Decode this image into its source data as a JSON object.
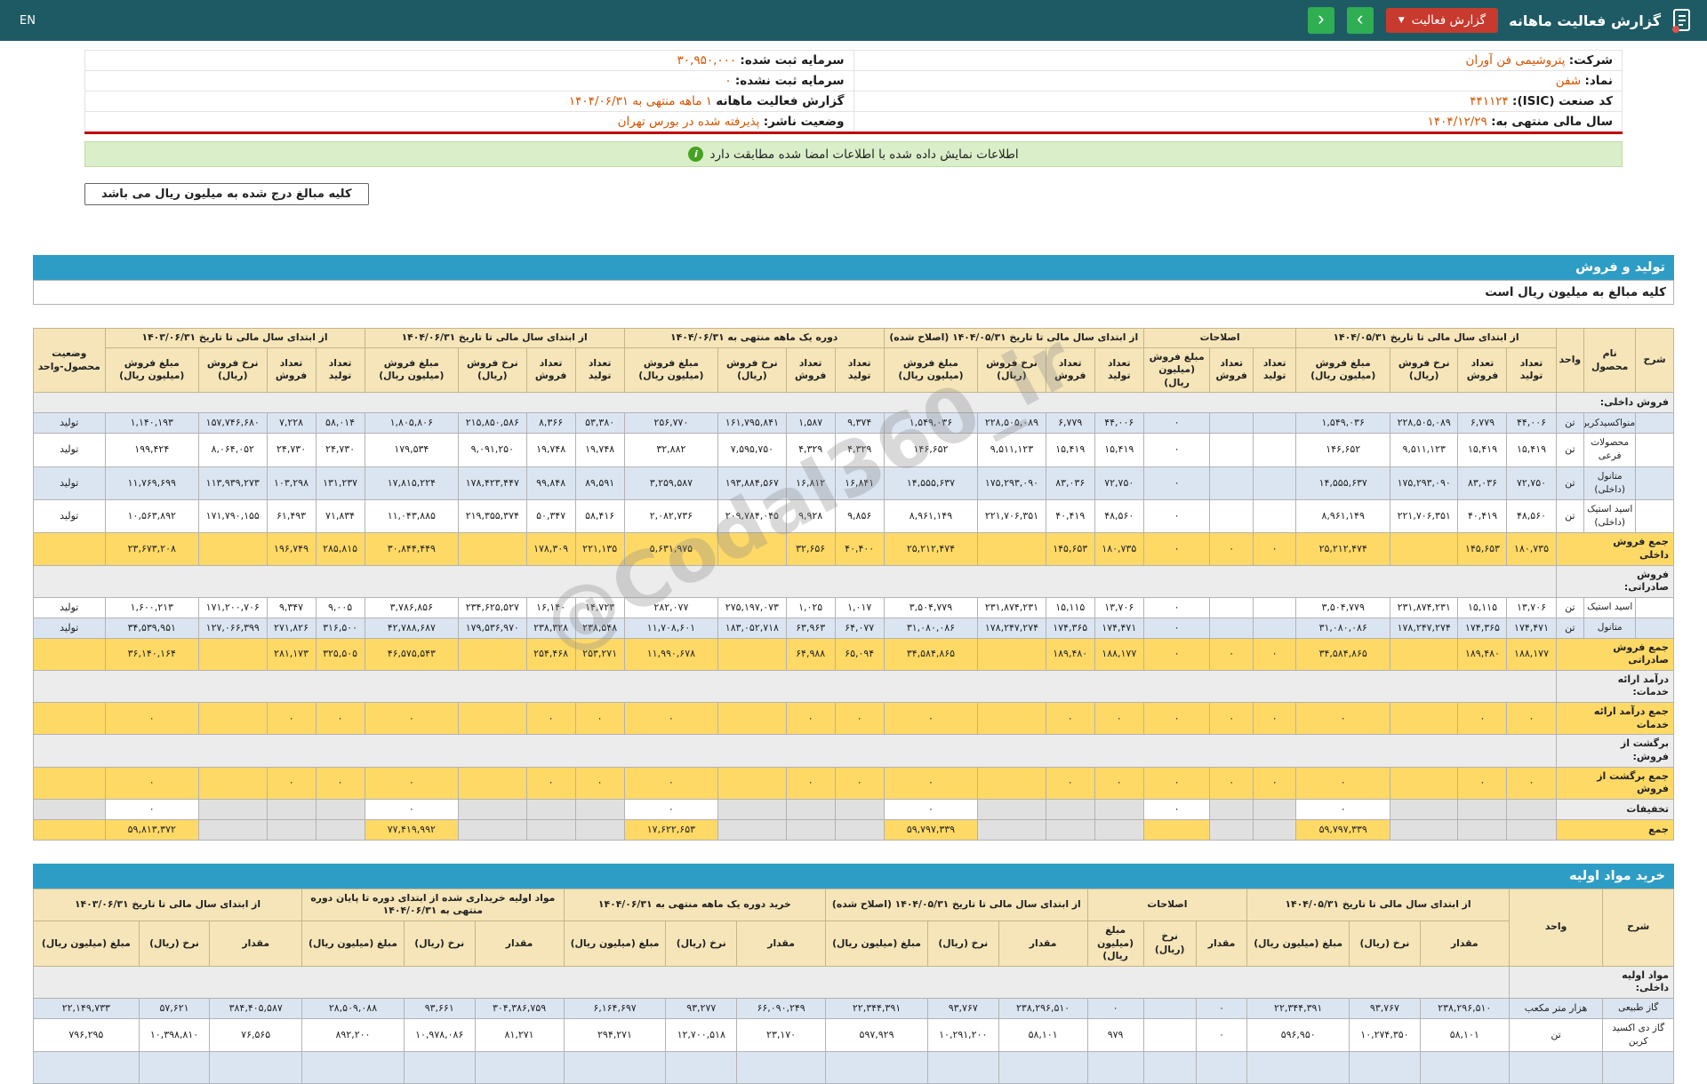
{
  "topbar": {
    "title": "گزارش فعالیت ماهانه",
    "report_button_label": "گزارش فعالیت",
    "lang_link": "EN"
  },
  "company": {
    "rows": [
      {
        "cells": [
          {
            "label": "شرکت:",
            "value": "پتروشیمی فن آوران"
          },
          {
            "label": "سرمایه ثبت شده:",
            "value": "۳۰,۹۵۰,۰۰۰"
          }
        ]
      },
      {
        "cells": [
          {
            "label": "نماد:",
            "value": "شفن"
          },
          {
            "label": "سرمایه ثبت نشده:",
            "value": "۰"
          }
        ]
      },
      {
        "cells": [
          {
            "label": "کد صنعت (ISIC):",
            "value": "۴۴۱۱۲۴"
          },
          {
            "label": "گزارش فعالیت ماهانه",
            "value": "۱ ماهه منتهی به ۱۴۰۴/۰۶/۳۱"
          }
        ]
      },
      {
        "cells": [
          {
            "label": "سال مالی منتهی به:",
            "value": "۱۴۰۴/۱۲/۲۹"
          },
          {
            "label": "وضعیت ناشر:",
            "value": "پذیرفته شده در بورس تهران"
          }
        ]
      }
    ]
  },
  "banner": {
    "text": "اطلاعات نمایش داده شده با اطلاعات امضا شده مطابقت دارد"
  },
  "notes": {
    "amounts_box": "کلیه مبالغ درج شده به میلیون ریال می باشد",
    "table_note": "کلیه مبالغ به میلیون ریال است"
  },
  "sections": {
    "sales": "تولید و فروش",
    "purchases": "خرید مواد اولیه"
  },
  "watermark": "@Codal360_ir",
  "colors": {
    "topbar_teal": "#1d5a64",
    "section_blue": "#2e9dc6",
    "button_red": "#c8392e",
    "button_green": "#2fae52",
    "highlight_yellow": "#ffd966",
    "row_blue": "#dbe5f2",
    "value_orange": "#d35400",
    "banner_green": "#daeec9",
    "red_line": "#c00000",
    "header_tan": "#f5e5b8"
  },
  "sales_table": {
    "corner": [
      "شرح",
      "نام محصول",
      "واحد"
    ],
    "status_header": "وضعیت محصول-واحد",
    "col_widths": [
      2.3,
      3.1,
      1.7,
      2.95,
      2.95,
      4.1,
      5.65,
      2.6,
      2.6,
      4.0,
      2.95,
      2.95,
      4.1,
      5.65,
      2.95,
      2.95,
      4.1,
      5.65,
      2.95,
      2.95,
      4.1,
      5.65,
      2.95,
      2.95,
      4.1,
      5.65,
      4.3
    ],
    "groups": [
      {
        "title": "از ابتدای سال مالی تا تاریخ ۱۴۰۴/۰۵/۳۱",
        "cols": [
          "تعداد تولید",
          "تعداد فروش",
          "نرخ فروش (ریال)",
          "مبلغ فروش (میلیون ریال)"
        ]
      },
      {
        "title": "اصلاحات",
        "cols": [
          "تعداد تولید",
          "تعداد فروش",
          "مبلغ فروش (میلیون ریال)"
        ]
      },
      {
        "title": "از ابتدای سال مالی تا تاریخ ۱۴۰۴/۰۵/۳۱ (اصلاح شده)",
        "cols": [
          "تعداد تولید",
          "تعداد فروش",
          "نرخ فروش (ریال)",
          "مبلغ فروش (میلیون ریال)"
        ]
      },
      {
        "title": "دوره یک ماهه منتهی به ۱۴۰۴/۰۶/۳۱",
        "cols": [
          "تعداد تولید",
          "تعداد فروش",
          "نرخ فروش (ریال)",
          "مبلغ فروش (میلیون ریال)"
        ]
      },
      {
        "title": "از ابتدای سال مالی تا تاریخ ۱۴۰۴/۰۶/۳۱",
        "cols": [
          "تعداد تولید",
          "تعداد فروش",
          "نرخ فروش (ریال)",
          "مبلغ فروش (میلیون ریال)"
        ]
      },
      {
        "title": "از ابتدای سال مالی تا تاریخ ۱۴۰۳/۰۶/۳۱",
        "cols": [
          "تعداد تولید",
          "تعداد فروش",
          "نرخ فروش (ریال)",
          "مبلغ فروش (میلیون ریال)"
        ]
      }
    ],
    "rows": [
      {
        "type": "section",
        "label": "فروش داخلی:"
      },
      {
        "type": "product",
        "name": "منواکسیدکربن",
        "unit": "تن",
        "status": "تولید",
        "shade": "rb",
        "cells": [
          "۴۴,۰۰۶",
          "۶,۷۷۹",
          "۲۲۸,۵۰۵,۰۸۹",
          "۱,۵۴۹,۰۳۶",
          "",
          "",
          "۰",
          "۴۴,۰۰۶",
          "۶,۷۷۹",
          "۲۲۸,۵۰۵,۰۸۹",
          "۱,۵۴۹,۰۳۶",
          "۹,۳۷۴",
          "۱,۵۸۷",
          "۱۶۱,۷۹۵,۸۴۱",
          "۲۵۶,۷۷۰",
          "۵۳,۳۸۰",
          "۸,۳۶۶",
          "۲۱۵,۸۵۰,۵۸۶",
          "۱,۸۰۵,۸۰۶",
          "۵۸,۰۱۴",
          "۷,۲۲۸",
          "۱۵۷,۷۴۶,۶۸۰",
          "۱,۱۴۰,۱۹۳"
        ]
      },
      {
        "type": "product",
        "name": "محصولات فرعی",
        "unit": "تن",
        "status": "تولید",
        "shade": "rw",
        "cells": [
          "۱۵,۴۱۹",
          "۱۵,۴۱۹",
          "۹,۵۱۱,۱۲۳",
          "۱۴۶,۶۵۲",
          "",
          "",
          "۰",
          "۱۵,۴۱۹",
          "۱۵,۴۱۹",
          "۹,۵۱۱,۱۲۳",
          "۱۴۶,۶۵۲",
          "۴,۳۲۹",
          "۴,۳۲۹",
          "۷,۵۹۵,۷۵۰",
          "۳۲,۸۸۲",
          "۱۹,۷۴۸",
          "۱۹,۷۴۸",
          "۹,۰۹۱,۲۵۰",
          "۱۷۹,۵۳۴",
          "۲۴,۷۳۰",
          "۲۴,۷۳۰",
          "۸,۰۶۴,۰۵۲",
          "۱۹۹,۴۲۴"
        ]
      },
      {
        "type": "product",
        "name": "متانول (داخلی)",
        "unit": "تن",
        "status": "تولید",
        "shade": "rb",
        "cells": [
          "۷۲,۷۵۰",
          "۸۳,۰۳۶",
          "۱۷۵,۲۹۳,۰۹۰",
          "۱۴,۵۵۵,۶۳۷",
          "",
          "",
          "۰",
          "۷۲,۷۵۰",
          "۸۳,۰۳۶",
          "۱۷۵,۲۹۳,۰۹۰",
          "۱۴,۵۵۵,۶۳۷",
          "۱۶,۸۴۱",
          "۱۶,۸۱۲",
          "۱۹۳,۸۸۴,۵۶۷",
          "۳,۲۵۹,۵۸۷",
          "۸۹,۵۹۱",
          "۹۹,۸۴۸",
          "۱۷۸,۴۲۳,۴۴۷",
          "۱۷,۸۱۵,۲۲۴",
          "۱۳۱,۲۳۷",
          "۱۰۳,۲۹۸",
          "۱۱۳,۹۳۹,۲۷۳",
          "۱۱,۷۶۹,۶۹۹"
        ]
      },
      {
        "type": "product",
        "name": "اسید استیک (داخلی)",
        "unit": "تن",
        "status": "تولید",
        "shade": "rw",
        "cells": [
          "۴۸,۵۶۰",
          "۴۰,۴۱۹",
          "۲۲۱,۷۰۶,۳۵۱",
          "۸,۹۶۱,۱۴۹",
          "",
          "",
          "۰",
          "۴۸,۵۶۰",
          "۴۰,۴۱۹",
          "۲۲۱,۷۰۶,۳۵۱",
          "۸,۹۶۱,۱۴۹",
          "۹,۸۵۶",
          "۹,۹۲۸",
          "۲۰۹,۷۸۴,۰۴۵",
          "۲,۰۸۲,۷۳۶",
          "۵۸,۴۱۶",
          "۵۰,۳۴۷",
          "۲۱۹,۳۵۵,۳۷۴",
          "۱۱,۰۴۳,۸۸۵",
          "۷۱,۸۳۴",
          "۶۱,۴۹۳",
          "۱۷۱,۷۹۰,۱۵۵",
          "۱۰,۵۶۳,۸۹۲"
        ]
      },
      {
        "type": "total",
        "label": "جمع فروش داخلی",
        "cells": [
          "۱۸۰,۷۳۵",
          "۱۴۵,۶۵۳",
          "",
          "۲۵,۲۱۲,۴۷۴",
          "۰",
          "۰",
          "۰",
          "۱۸۰,۷۳۵",
          "۱۴۵,۶۵۳",
          "",
          "۲۵,۲۱۲,۴۷۴",
          "۴۰,۴۰۰",
          "۳۲,۶۵۶",
          "",
          "۵,۶۳۱,۹۷۵",
          "۲۲۱,۱۳۵",
          "۱۷۸,۳۰۹",
          "",
          "۳۰,۸۴۴,۴۴۹",
          "۲۸۵,۸۱۵",
          "۱۹۶,۷۴۹",
          "",
          "۲۳,۶۷۳,۲۰۸"
        ]
      },
      {
        "type": "section",
        "label": "فروش صادراتی:"
      },
      {
        "type": "product",
        "name": "اسید استیک",
        "unit": "تن",
        "status": "تولید",
        "shade": "rw",
        "cells": [
          "۱۳,۷۰۶",
          "۱۵,۱۱۵",
          "۲۳۱,۸۷۴,۲۳۱",
          "۳,۵۰۴,۷۷۹",
          "",
          "",
          "۰",
          "۱۳,۷۰۶",
          "۱۵,۱۱۵",
          "۲۳۱,۸۷۴,۲۳۱",
          "۳,۵۰۴,۷۷۹",
          "۱,۰۱۷",
          "۱,۰۲۵",
          "۲۷۵,۱۹۷,۰۷۳",
          "۲۸۲,۰۷۷",
          "۱۴,۷۲۳",
          "۱۶,۱۴۰",
          "۲۳۴,۶۲۵,۵۲۷",
          "۳,۷۸۶,۸۵۶",
          "۹,۰۰۵",
          "۹,۳۴۷",
          "۱۷۱,۲۰۰,۷۰۶",
          "۱,۶۰۰,۲۱۳"
        ]
      },
      {
        "type": "product",
        "name": "متانول",
        "unit": "تن",
        "status": "تولید",
        "shade": "rb",
        "cells": [
          "۱۷۴,۴۷۱",
          "۱۷۴,۳۶۵",
          "۱۷۸,۲۴۷,۲۷۴",
          "۳۱,۰۸۰,۰۸۶",
          "",
          "",
          "۰",
          "۱۷۴,۴۷۱",
          "۱۷۴,۳۶۵",
          "۱۷۸,۲۴۷,۲۷۴",
          "۳۱,۰۸۰,۰۸۶",
          "۶۴,۰۷۷",
          "۶۳,۹۶۳",
          "۱۸۳,۰۵۲,۷۱۸",
          "۱۱,۷۰۸,۶۰۱",
          "۲۳۸,۵۴۸",
          "۲۳۸,۳۲۸",
          "۱۷۹,۵۳۶,۹۷۰",
          "۴۲,۷۸۸,۶۸۷",
          "۳۱۶,۵۰۰",
          "۲۷۱,۸۲۶",
          "۱۲۷,۰۶۶,۳۹۹",
          "۳۴,۵۳۹,۹۵۱"
        ]
      },
      {
        "type": "total",
        "label": "جمع فروش صادراتی",
        "cells": [
          "۱۸۸,۱۷۷",
          "۱۸۹,۴۸۰",
          "",
          "۳۴,۵۸۴,۸۶۵",
          "۰",
          "۰",
          "۰",
          "۱۸۸,۱۷۷",
          "۱۸۹,۴۸۰",
          "",
          "۳۴,۵۸۴,۸۶۵",
          "۶۵,۰۹۴",
          "۶۴,۹۸۸",
          "",
          "۱۱,۹۹۰,۶۷۸",
          "۲۵۳,۲۷۱",
          "۲۵۴,۴۶۸",
          "",
          "۴۶,۵۷۵,۵۴۳",
          "۳۲۵,۵۰۵",
          "۲۸۱,۱۷۳",
          "",
          "۳۶,۱۴۰,۱۶۴"
        ]
      },
      {
        "type": "section",
        "label": "درآمد ارائه خدمات:"
      },
      {
        "type": "total",
        "label": "جمع درآمد ارائه خدمات",
        "cells": [
          "۰",
          "۰",
          "",
          "۰",
          "۰",
          "۰",
          "۰",
          "۰",
          "۰",
          "",
          "۰",
          "۰",
          "۰",
          "",
          "۰",
          "۰",
          "۰",
          "",
          "۰",
          "۰",
          "۰",
          "",
          "۰"
        ]
      },
      {
        "type": "section",
        "label": "برگشت از فروش:"
      },
      {
        "type": "total",
        "label": "جمع برگشت از فروش",
        "cells": [
          "۰",
          "۰",
          "",
          "۰",
          "۰",
          "۰",
          "۰",
          "۰",
          "۰",
          "",
          "۰",
          "۰",
          "۰",
          "",
          "۰",
          "۰",
          "۰",
          "",
          "۰",
          "۰",
          "۰",
          "",
          "۰"
        ]
      },
      {
        "type": "money",
        "label": "تخفیفات",
        "money": [
          "۰",
          "۰",
          "۰",
          "۰",
          "۰",
          "۰"
        ]
      },
      {
        "type": "grand",
        "label": "جمع",
        "money": [
          "۵۹,۷۹۷,۳۳۹",
          "",
          "۵۹,۷۹۷,۳۳۹",
          "۱۷,۶۲۲,۶۵۳",
          "۷۷,۴۱۹,۹۹۲",
          "۵۹,۸۱۳,۳۷۲"
        ]
      }
    ]
  },
  "purchase_table": {
    "corner": [
      "شرح",
      "واحد"
    ],
    "status_header": null,
    "col_widths": [
      4.3,
      5.7,
      5.4,
      4.3,
      6.2,
      3.1,
      3.2,
      3.4,
      5.4,
      4.3,
      6.2,
      5.4,
      4.3,
      6.2,
      5.4,
      4.3,
      6.2,
      5.6,
      4.3,
      6.4
    ],
    "groups": [
      {
        "title": "از ابتدای سال مالی تا تاریخ ۱۴۰۴/۰۵/۳۱",
        "cols": [
          "مقدار",
          "نرخ (ریال)",
          "مبلغ (میلیون ریال)"
        ]
      },
      {
        "title": "اصلاحات",
        "cols": [
          "مقدار",
          "نرخ (ریال)",
          "مبلغ (میلیون ریال)"
        ]
      },
      {
        "title": "از ابتدای سال مالی تا تاریخ ۱۴۰۴/۰۵/۳۱ (اصلاح شده)",
        "cols": [
          "مقدار",
          "نرخ (ریال)",
          "مبلغ (میلیون ریال)"
        ]
      },
      {
        "title": "خرید دوره یک ماهه منتهی به ۱۴۰۴/۰۶/۳۱",
        "cols": [
          "مقدار",
          "نرخ (ریال)",
          "مبلغ (میلیون ریال)"
        ]
      },
      {
        "title": "مواد اولیه خریداری شده از ابتدای دوره تا پایان دوره منتهی به ۱۴۰۴/۰۶/۳۱",
        "cols": [
          "مقدار",
          "نرخ (ریال)",
          "مبلغ (میلیون ریال)"
        ]
      },
      {
        "title": "از ابتدای سال مالی تا تاریخ ۱۴۰۳/۰۶/۳۱",
        "cols": [
          "مقدار",
          "نرخ (ریال)",
          "مبلغ (میلیون ریال)"
        ]
      }
    ],
    "rows": [
      {
        "type": "section",
        "label": "مواد اولیه داخلی:"
      },
      {
        "type": "product",
        "name": "گاز طبیعی",
        "unit": "هزار متر مکعب",
        "shade": "rb",
        "cells": [
          "۲۳۸,۲۹۶,۵۱۰",
          "۹۳,۷۶۷",
          "۲۲,۳۴۴,۳۹۱",
          "۰",
          "",
          "۰",
          "۲۳۸,۲۹۶,۵۱۰",
          "۹۳,۷۶۷",
          "۲۲,۳۴۴,۳۹۱",
          "۶۶,۰۹۰,۲۴۹",
          "۹۳,۲۷۷",
          "۶,۱۶۴,۶۹۷",
          "۳۰۴,۳۸۶,۷۵۹",
          "۹۳,۶۶۱",
          "۲۸,۵۰۹,۰۸۸",
          "۳۸۴,۴۰۵,۵۸۷",
          "۵۷,۶۲۱",
          "۲۲,۱۴۹,۷۳۳"
        ]
      },
      {
        "type": "product",
        "name": "گاز دی اکسید کربن",
        "unit": "تن",
        "shade": "rw",
        "cells": [
          "۵۸,۱۰۱",
          "۱۰,۲۷۴,۳۵۰",
          "۵۹۶,۹۵۰",
          "۰",
          "",
          "۹۷۹",
          "۵۸,۱۰۱",
          "۱۰,۲۹۱,۲۰۰",
          "۵۹۷,۹۲۹",
          "۲۳,۱۷۰",
          "۱۲,۷۰۰,۵۱۸",
          "۲۹۴,۲۷۱",
          "۸۱,۲۷۱",
          "۱۰,۹۷۸,۰۸۶",
          "۸۹۲,۲۰۰",
          "۷۶,۵۶۵",
          "۱۰,۳۹۸,۸۱۰",
          "۷۹۶,۲۹۵"
        ]
      },
      {
        "type": "clipped"
      }
    ]
  }
}
